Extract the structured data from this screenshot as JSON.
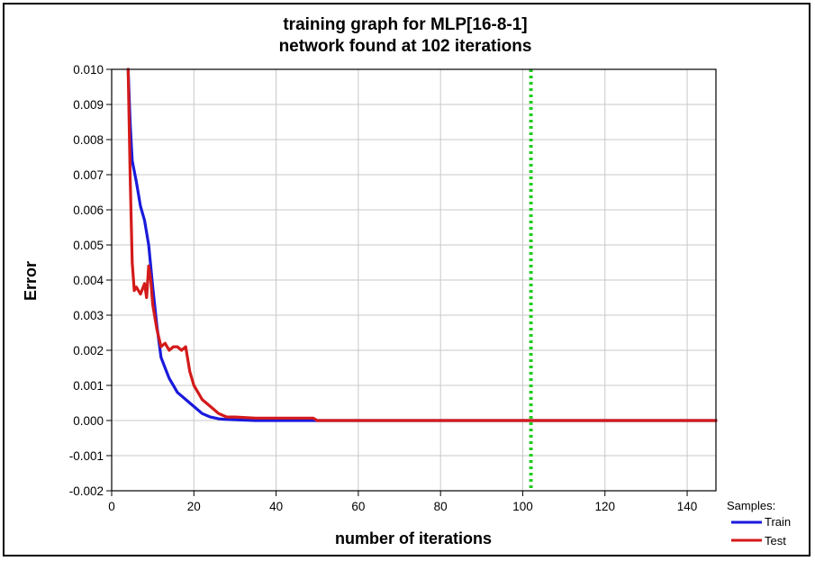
{
  "chart_data": {
    "type": "line",
    "title": [
      "training graph for MLP[16-8-1]",
      "network found at 102 iterations"
    ],
    "xlabel": "number of iterations",
    "ylabel": "Error",
    "xlim": [
      0,
      147
    ],
    "ylim": [
      -0.002,
      0.01
    ],
    "xticks": [
      0,
      20,
      40,
      60,
      80,
      100,
      120,
      140
    ],
    "xtick_labels": [
      "0",
      "20",
      "40",
      "60",
      "80",
      "100",
      "120",
      "140"
    ],
    "yticks": [
      0.01,
      0.009,
      0.008,
      0.007,
      0.006,
      0.005,
      0.004,
      0.003,
      0.002,
      0.001,
      0.0,
      -0.001,
      -0.002
    ],
    "ytick_labels": [
      "0.010",
      "0.009",
      "0.008",
      "0.007",
      "0.006",
      "0.005",
      "0.004",
      "0.003",
      "0.002",
      "0.001",
      "0.000",
      "-0.001",
      "-0.002"
    ],
    "grid": true,
    "legend_title": "Samples:",
    "legend_position": "bottom-right outside",
    "marker_line": {
      "x": 102,
      "color": "#22cc22",
      "style": "dotted"
    },
    "series": [
      {
        "name": "Train",
        "color": "#1a1adc",
        "x": [
          4,
          4.5,
          5,
          6,
          7,
          8,
          9,
          10,
          11,
          12,
          13,
          14,
          15,
          16,
          17,
          18,
          19,
          20,
          22,
          24,
          26,
          28,
          30,
          35,
          40,
          50,
          60,
          80,
          100,
          120,
          147
        ],
        "y": [
          0.01,
          0.0085,
          0.0074,
          0.0068,
          0.0061,
          0.0057,
          0.005,
          0.0038,
          0.0027,
          0.0018,
          0.0015,
          0.0012,
          0.001,
          0.0008,
          0.0007,
          0.0006,
          0.0005,
          0.0004,
          0.0002,
          0.0001,
          5e-05,
          3e-05,
          2e-05,
          0.0,
          0.0,
          0.0,
          0.0,
          0.0,
          0.0,
          0.0,
          0.0
        ]
      },
      {
        "name": "Test",
        "color": "#d41a1a",
        "x": [
          4,
          4.5,
          5,
          5.5,
          6,
          7,
          8,
          8.5,
          9,
          9.5,
          10,
          11,
          12,
          13,
          14,
          15,
          16,
          17,
          18,
          19,
          20,
          21,
          22,
          24,
          26,
          28,
          30,
          35,
          40,
          45,
          49,
          50,
          60,
          80,
          100,
          120,
          147
        ],
        "y": [
          0.01,
          0.007,
          0.0045,
          0.0037,
          0.0038,
          0.0036,
          0.0039,
          0.0035,
          0.0044,
          0.004,
          0.0033,
          0.0026,
          0.0021,
          0.0022,
          0.002,
          0.0021,
          0.0021,
          0.002,
          0.0021,
          0.0014,
          0.001,
          0.0008,
          0.0006,
          0.0004,
          0.0002,
          0.0001,
          0.0001,
          7e-05,
          7e-05,
          7e-05,
          7e-05,
          0.0,
          0.0,
          0.0,
          0.0,
          0.0,
          0.0
        ]
      }
    ]
  }
}
